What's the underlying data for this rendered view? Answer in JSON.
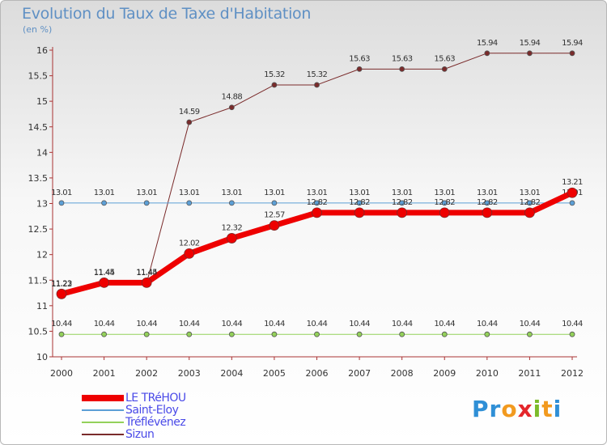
{
  "title": "Evolution du Taux de Taxe d'Habitation",
  "subtitle": "(en %)",
  "logo": {
    "text": "Proxiti",
    "letters": [
      "P",
      "r",
      "o",
      "x",
      "i",
      "t",
      "i"
    ],
    "colors": [
      "#2f8fd6",
      "#2f8fd6",
      "#f29a1f",
      "#e4262b",
      "#7cba2a",
      "#f29a1f",
      "#2f8fd6"
    ]
  },
  "chart_data": {
    "type": "line",
    "title": "Evolution du Taux de Taxe d'Habitation",
    "subtitle": "(en %)",
    "x": [
      "2000",
      "2001",
      "2002",
      "2003",
      "2004",
      "2005",
      "2006",
      "2007",
      "2008",
      "2009",
      "2010",
      "2011",
      "2012"
    ],
    "ylim": [
      10,
      16
    ],
    "y_ticks": [
      "10",
      "10.5",
      "11",
      "11.5",
      "12",
      "12.5",
      "13",
      "13.5",
      "14",
      "14.5",
      "15",
      "15.5",
      "16"
    ],
    "grid": false,
    "legend_position": "bottom-left",
    "series": [
      {
        "name": "Sizun",
        "color": "#7a2b2b",
        "line_width": 1,
        "values": [
          11.22,
          11.44,
          11.44,
          14.59,
          14.88,
          15.32,
          15.32,
          15.63,
          15.63,
          15.63,
          15.94,
          15.94,
          15.94
        ],
        "labels": [
          "11.22",
          "11.44",
          "11.44",
          "14.59",
          "14.88",
          "15.32",
          "15.32",
          "15.63",
          "15.63",
          "15.63",
          "15.94",
          "15.94",
          "15.94"
        ]
      },
      {
        "name": "Saint-Eloy",
        "color": "#5c9fd6",
        "line_width": 1,
        "values": [
          13.01,
          13.01,
          13.01,
          13.01,
          13.01,
          13.01,
          13.01,
          13.01,
          13.01,
          13.01,
          13.01,
          13.01,
          13.01
        ],
        "labels": [
          "13.01",
          "13.01",
          "13.01",
          "13.01",
          "13.01",
          "13.01",
          "13.01",
          "13.01",
          "13.01",
          "13.01",
          "13.01",
          "13.01",
          "13.01"
        ]
      },
      {
        "name": "Tréflévénez",
        "color": "#93d15a",
        "line_width": 1,
        "values": [
          10.44,
          10.44,
          10.44,
          10.44,
          10.44,
          10.44,
          10.44,
          10.44,
          10.44,
          10.44,
          10.44,
          10.44,
          10.44
        ],
        "labels": [
          "10.44",
          "10.44",
          "10.44",
          "10.44",
          "10.44",
          "10.44",
          "10.44",
          "10.44",
          "10.44",
          "10.44",
          "10.44",
          "10.44",
          "10.44"
        ]
      },
      {
        "name": "LE TRéHOU",
        "color": "#ee0000",
        "line_width": 7,
        "values": [
          11.23,
          11.45,
          11.45,
          12.02,
          12.32,
          12.57,
          12.82,
          12.82,
          12.82,
          12.82,
          12.82,
          12.82,
          13.21
        ],
        "labels": [
          "11.23",
          "11.45",
          "11.45",
          "12.02",
          "12.32",
          "12.57",
          "12.82",
          "12.82",
          "12.82",
          "12.82",
          "12.82",
          "12.82",
          "13.21"
        ]
      }
    ],
    "legend": [
      "LE TRéHOU",
      "Saint-Eloy",
      "Tréflévénez",
      "Sizun"
    ]
  }
}
